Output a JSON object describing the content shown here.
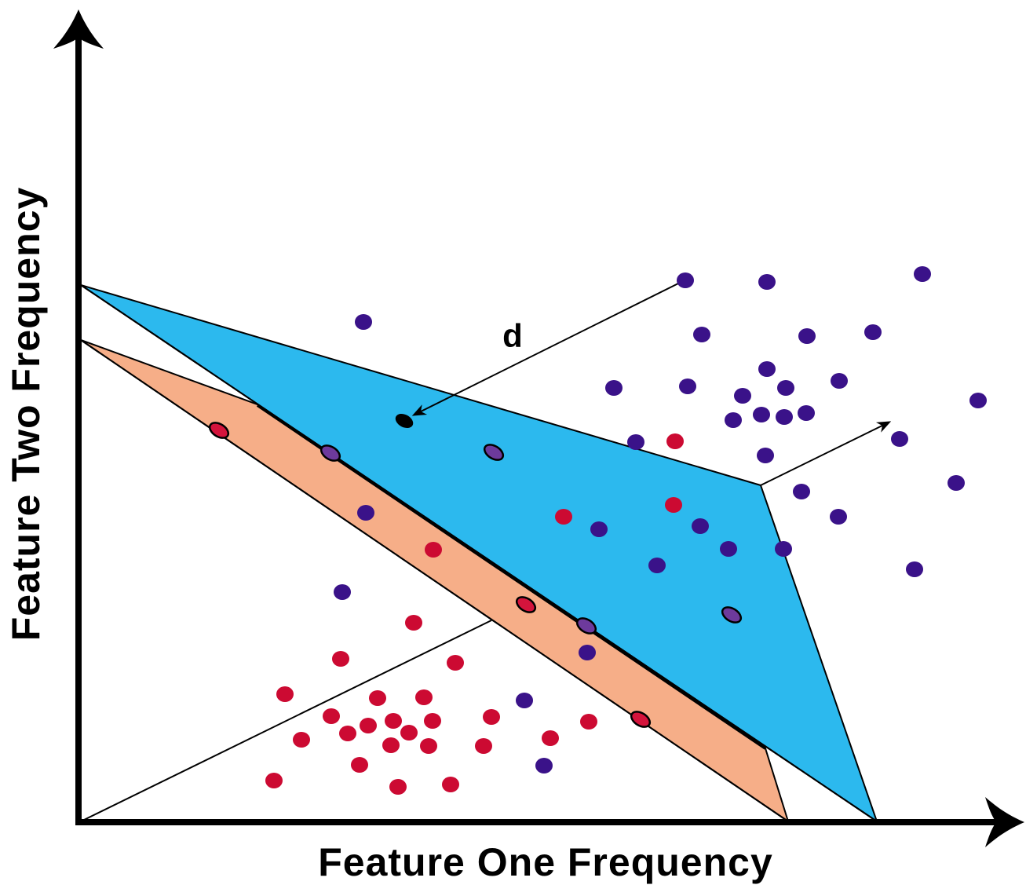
{
  "labels": {
    "x_axis": "Feature One Frequency",
    "y_axis": "Feature Two Frequency",
    "distance": "d"
  },
  "colors": {
    "region_blue": "#2cb9ee",
    "region_orange": "#f6ae88",
    "class_blue": "#3a1289",
    "class_red": "#cc0a32",
    "support_blue": "#6d3a9c",
    "support_red": "#d4143c",
    "query_point": "#000000"
  },
  "points": {
    "blue": [
      [
        873,
        357
      ],
      [
        977,
        359
      ],
      [
        1175,
        349
      ],
      [
        463,
        410
      ],
      [
        894,
        426
      ],
      [
        1028,
        428
      ],
      [
        1112,
        423
      ],
      [
        977,
        470
      ],
      [
        1069,
        485
      ],
      [
        782,
        494
      ],
      [
        876,
        492
      ],
      [
        946,
        504
      ],
      [
        1001,
        494
      ],
      [
        934,
        535
      ],
      [
        970,
        528
      ],
      [
        999,
        531
      ],
      [
        1027,
        526
      ],
      [
        1246,
        510
      ],
      [
        1146,
        559
      ],
      [
        810,
        563
      ],
      [
        975,
        580
      ],
      [
        1021,
        626
      ],
      [
        1218,
        615
      ],
      [
        1068,
        658
      ],
      [
        763,
        674
      ],
      [
        892,
        670
      ],
      [
        928,
        699
      ],
      [
        998,
        699
      ],
      [
        837,
        720
      ],
      [
        1165,
        725
      ],
      [
        466,
        653
      ],
      [
        436,
        754
      ],
      [
        748,
        831
      ],
      [
        668,
        892
      ],
      [
        693,
        975
      ]
    ],
    "red": [
      [
        860,
        562
      ],
      [
        858,
        643
      ],
      [
        718,
        658
      ],
      [
        552,
        700
      ],
      [
        527,
        793
      ],
      [
        434,
        839
      ],
      [
        580,
        844
      ],
      [
        363,
        884
      ],
      [
        481,
        889
      ],
      [
        540,
        888
      ],
      [
        422,
        912
      ],
      [
        469,
        924
      ],
      [
        501,
        918
      ],
      [
        551,
        918
      ],
      [
        626,
        913
      ],
      [
        750,
        919
      ],
      [
        443,
        934
      ],
      [
        521,
        933
      ],
      [
        384,
        942
      ],
      [
        498,
        949
      ],
      [
        546,
        950
      ],
      [
        616,
        950
      ],
      [
        701,
        940
      ],
      [
        458,
        974
      ],
      [
        349,
        994
      ],
      [
        507,
        1002
      ],
      [
        574,
        999
      ]
    ],
    "support_red": [
      [
        279,
        548
      ],
      [
        670,
        770
      ],
      [
        816,
        916
      ]
    ],
    "support_blue": [
      [
        421,
        577
      ],
      [
        629,
        576
      ],
      [
        747,
        797
      ],
      [
        932,
        783
      ]
    ],
    "query": [
      [
        515,
        536
      ]
    ]
  }
}
